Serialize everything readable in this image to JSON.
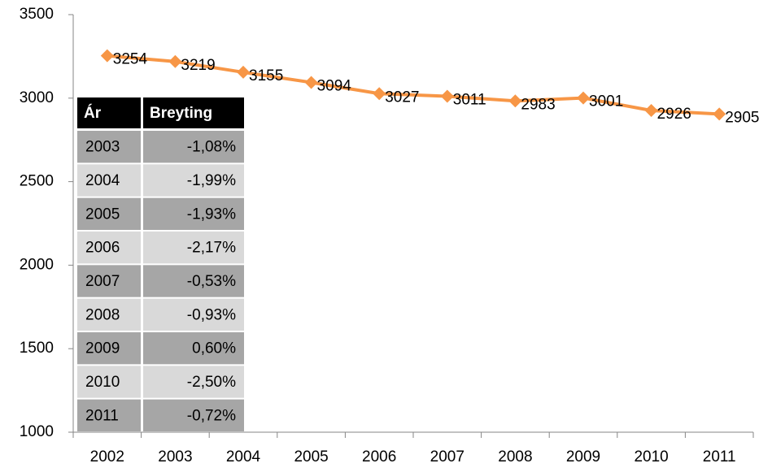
{
  "chart_data": {
    "type": "line",
    "categories": [
      "2002",
      "2003",
      "2004",
      "2005",
      "2006",
      "2007",
      "2008",
      "2009",
      "2010",
      "2011"
    ],
    "values": [
      3254,
      3219,
      3155,
      3094,
      3027,
      3011,
      2983,
      3001,
      2926,
      2905
    ],
    "color": "#f79646",
    "ylim": [
      1000,
      3500
    ],
    "yticks": [
      1000,
      1500,
      2000,
      2500,
      3000,
      3500
    ],
    "grid": false,
    "data_labels": true
  },
  "table": {
    "header": [
      "Ár",
      "Breyting"
    ],
    "rows": [
      [
        "2003",
        "-1,08%"
      ],
      [
        "2004",
        "-1,99%"
      ],
      [
        "2005",
        "-1,93%"
      ],
      [
        "2006",
        "-2,17%"
      ],
      [
        "2007",
        "-0,53%"
      ],
      [
        "2008",
        "-0,93%"
      ],
      [
        "2009",
        "0,60%"
      ],
      [
        "2010",
        "-2,50%"
      ],
      [
        "2011",
        "-0,72%"
      ]
    ]
  }
}
